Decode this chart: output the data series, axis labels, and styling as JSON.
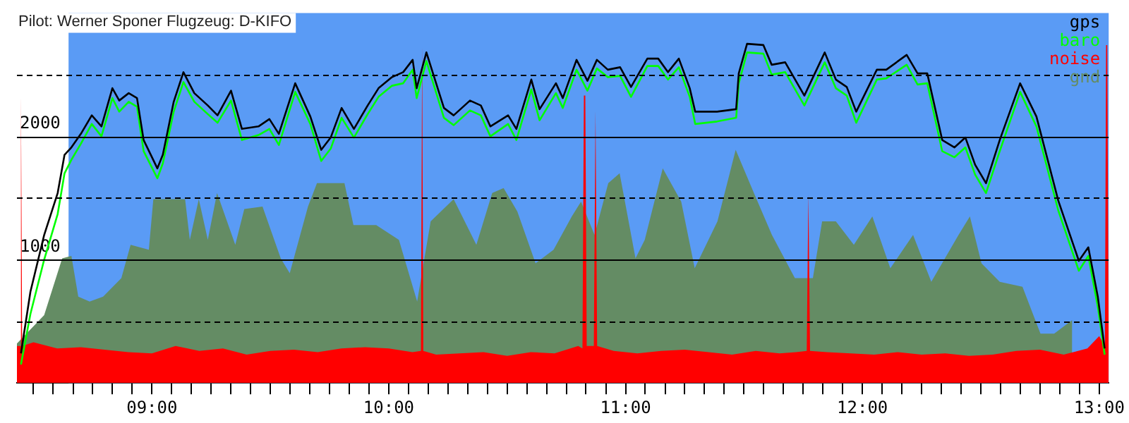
{
  "chart_data": {
    "type": "line",
    "title": "Pilot: Werner Sponer Flugzeug: D-KIFO",
    "legend": "top right",
    "grid": "y",
    "xlim": [
      8.43,
      13.04
    ],
    "ylim": [
      0,
      3000
    ],
    "xticks": [
      {
        "value": 8.5,
        "label": null
      },
      {
        "value": 8.583,
        "label": null
      },
      {
        "value": 8.667,
        "label": null
      },
      {
        "value": 8.75,
        "label": null
      },
      {
        "value": 8.833,
        "label": null
      },
      {
        "value": 8.917,
        "label": null
      },
      {
        "value": 9,
        "label": "09:00"
      },
      {
        "value": 9.083,
        "label": null
      },
      {
        "value": 9.167,
        "label": null
      },
      {
        "value": 9.25,
        "label": null
      },
      {
        "value": 9.333,
        "label": null
      },
      {
        "value": 9.417,
        "label": null
      },
      {
        "value": 9.5,
        "label": null
      },
      {
        "value": 9.583,
        "label": null
      },
      {
        "value": 9.667,
        "label": null
      },
      {
        "value": 9.75,
        "label": null
      },
      {
        "value": 9.833,
        "label": null
      },
      {
        "value": 9.917,
        "label": null
      },
      {
        "value": 10,
        "label": "10:00"
      },
      {
        "value": 10.083,
        "label": null
      },
      {
        "value": 10.167,
        "label": null
      },
      {
        "value": 10.25,
        "label": null
      },
      {
        "value": 10.333,
        "label": null
      },
      {
        "value": 10.417,
        "label": null
      },
      {
        "value": 10.5,
        "label": null
      },
      {
        "value": 10.583,
        "label": null
      },
      {
        "value": 10.667,
        "label": null
      },
      {
        "value": 10.75,
        "label": null
      },
      {
        "value": 10.833,
        "label": null
      },
      {
        "value": 10.917,
        "label": null
      },
      {
        "value": 11,
        "label": "11:00"
      },
      {
        "value": 11.083,
        "label": null
      },
      {
        "value": 11.167,
        "label": null
      },
      {
        "value": 11.25,
        "label": null
      },
      {
        "value": 11.333,
        "label": null
      },
      {
        "value": 11.417,
        "label": null
      },
      {
        "value": 11.5,
        "label": null
      },
      {
        "value": 11.583,
        "label": null
      },
      {
        "value": 11.667,
        "label": null
      },
      {
        "value": 11.75,
        "label": null
      },
      {
        "value": 11.833,
        "label": null
      },
      {
        "value": 11.917,
        "label": null
      },
      {
        "value": 12,
        "label": "12:00"
      },
      {
        "value": 12.083,
        "label": null
      },
      {
        "value": 12.167,
        "label": null
      },
      {
        "value": 12.25,
        "label": null
      },
      {
        "value": 12.333,
        "label": null
      },
      {
        "value": 12.417,
        "label": null
      },
      {
        "value": 12.5,
        "label": null
      },
      {
        "value": 12.583,
        "label": null
      },
      {
        "value": 12.667,
        "label": null
      },
      {
        "value": 12.75,
        "label": null
      },
      {
        "value": 12.833,
        "label": null
      },
      {
        "value": 12.917,
        "label": null
      },
      {
        "value": 13,
        "label": "13:00"
      }
    ],
    "yticks": [
      {
        "value": 500,
        "label": null
      },
      1000,
      {
        "value": 1500,
        "label": null
      },
      2000,
      {
        "value": 2500,
        "label": null
      }
    ],
    "bands": [
      {
        "axis": "x",
        "from": 8.648,
        "to": 13.04,
        "color": "#5a9bf5"
      }
    ],
    "series": [
      {
        "name": "gnd",
        "type": "area",
        "color": "#648c64",
        "x": [
          8.43,
          8.545,
          8.621,
          8.66,
          8.689,
          8.737,
          8.794,
          8.871,
          8.91,
          8.987,
          9.006,
          9.14,
          9.16,
          9.198,
          9.236,
          9.275,
          9.352,
          9.39,
          9.467,
          9.544,
          9.582,
          9.659,
          9.697,
          9.813,
          9.851,
          9.947,
          10.043,
          10.12,
          10.177,
          10.274,
          10.37,
          10.437,
          10.485,
          10.543,
          10.62,
          10.696,
          10.773,
          10.812,
          10.869,
          10.927,
          10.975,
          11.042,
          11.081,
          11.157,
          11.235,
          11.292,
          11.388,
          11.465,
          11.542,
          11.618,
          11.715,
          11.791,
          11.83,
          11.888,
          11.964,
          12.042,
          12.118,
          12.214,
          12.291,
          12.406,
          12.454,
          12.503,
          12.58,
          12.676,
          12.752,
          12.81,
          12.886
        ],
        "values": [
          320,
          550,
          1010,
          1030,
          700,
          660,
          700,
          850,
          1120,
          1080,
          1490,
          1490,
          1160,
          1490,
          1160,
          1540,
          1120,
          1410,
          1430,
          1010,
          890,
          1430,
          1620,
          1620,
          1280,
          1280,
          1160,
          660,
          1310,
          1490,
          1120,
          1540,
          1580,
          1390,
          970,
          1080,
          1350,
          1470,
          1200,
          1620,
          1700,
          1010,
          1160,
          1740,
          1470,
          930,
          1310,
          1890,
          1540,
          1200,
          850,
          850,
          1310,
          1310,
          1120,
          1350,
          930,
          1200,
          820,
          1200,
          1350,
          970,
          820,
          780,
          400,
          400,
          510
        ]
      },
      {
        "name": "noise",
        "type": "area",
        "color": "#ff0000",
        "x": [
          8.43,
          8.442,
          8.447,
          8.452,
          8.5,
          8.6,
          8.7,
          8.8,
          8.9,
          9.0,
          9.1,
          9.2,
          9.3,
          9.4,
          9.5,
          9.6,
          9.7,
          9.8,
          9.9,
          10.0,
          10.1,
          10.136,
          10.141,
          10.146,
          10.2,
          10.3,
          10.4,
          10.5,
          10.6,
          10.7,
          10.8,
          10.818,
          10.824,
          10.83,
          10.836,
          10.866,
          10.873,
          10.88,
          10.95,
          11.05,
          11.15,
          11.25,
          11.35,
          11.45,
          11.55,
          11.65,
          11.72,
          11.765,
          11.772,
          11.779,
          11.85,
          11.95,
          12.05,
          12.15,
          12.25,
          12.35,
          12.45,
          12.55,
          12.65,
          12.75,
          12.85,
          12.95,
          13.0,
          13.024,
          13.029,
          13.034,
          13.04
        ],
        "values": [
          300,
          300,
          2340,
          300,
          330,
          280,
          290,
          270,
          250,
          240,
          300,
          260,
          280,
          230,
          260,
          270,
          250,
          280,
          290,
          280,
          250,
          260,
          2740,
          260,
          230,
          240,
          250,
          220,
          250,
          240,
          300,
          280,
          2330,
          2330,
          300,
          300,
          2210,
          300,
          260,
          240,
          260,
          270,
          250,
          230,
          260,
          240,
          250,
          260,
          1530,
          260,
          250,
          240,
          230,
          250,
          230,
          240,
          220,
          230,
          260,
          270,
          230,
          280,
          380,
          300,
          2740,
          2740,
          300
        ]
      },
      {
        "name": "baro",
        "type": "line",
        "color": "#00ff00",
        "x": [
          8.447,
          8.487,
          8.545,
          8.602,
          8.631,
          8.66,
          8.7,
          8.746,
          8.787,
          8.833,
          8.862,
          8.902,
          8.937,
          8.965,
          9.023,
          9.046,
          9.092,
          9.133,
          9.179,
          9.236,
          9.277,
          9.334,
          9.38,
          9.45,
          9.496,
          9.536,
          9.605,
          9.669,
          9.715,
          9.755,
          9.801,
          9.853,
          9.911,
          9.957,
          10.014,
          10.061,
          10.101,
          10.118,
          10.159,
          10.233,
          10.274,
          10.343,
          10.389,
          10.429,
          10.504,
          10.539,
          10.602,
          10.637,
          10.706,
          10.735,
          10.793,
          10.839,
          10.879,
          10.925,
          10.977,
          11.023,
          11.092,
          11.138,
          11.179,
          11.225,
          11.271,
          11.294,
          11.386,
          11.467,
          11.478,
          11.513,
          11.582,
          11.617,
          11.674,
          11.755,
          11.841,
          11.888,
          11.934,
          11.974,
          12.061,
          12.101,
          12.187,
          12.233,
          12.274,
          12.337,
          12.389,
          12.435,
          12.476,
          12.522,
          12.58,
          12.666,
          12.735,
          12.827,
          12.914,
          12.954,
          12.994,
          13.023
        ],
        "values": [
          150,
          560,
          1000,
          1370,
          1700,
          1810,
          1940,
          2100,
          2000,
          2310,
          2200,
          2280,
          2240,
          1880,
          1660,
          1780,
          2200,
          2440,
          2280,
          2180,
          2110,
          2290,
          1970,
          2010,
          2060,
          1930,
          2360,
          2100,
          1800,
          1900,
          2150,
          1990,
          2180,
          2320,
          2410,
          2430,
          2540,
          2310,
          2610,
          2150,
          2090,
          2210,
          2170,
          2000,
          2100,
          1970,
          2380,
          2130,
          2350,
          2230,
          2540,
          2370,
          2550,
          2480,
          2490,
          2320,
          2570,
          2570,
          2460,
          2560,
          2320,
          2100,
          2120,
          2150,
          2430,
          2680,
          2670,
          2500,
          2520,
          2250,
          2600,
          2390,
          2330,
          2110,
          2460,
          2470,
          2580,
          2420,
          2430,
          1880,
          1830,
          1910,
          1690,
          1540,
          1880,
          2360,
          2080,
          1400,
          910,
          1030,
          620,
          230
        ]
      },
      {
        "name": "gps",
        "type": "line",
        "color": "#000000",
        "x": [
          8.447,
          8.487,
          8.545,
          8.602,
          8.631,
          8.66,
          8.7,
          8.746,
          8.787,
          8.833,
          8.862,
          8.902,
          8.937,
          8.965,
          9.023,
          9.046,
          9.092,
          9.133,
          9.179,
          9.236,
          9.277,
          9.334,
          9.38,
          9.45,
          9.496,
          9.536,
          9.605,
          9.669,
          9.715,
          9.755,
          9.801,
          9.853,
          9.911,
          9.957,
          10.014,
          10.061,
          10.101,
          10.118,
          10.159,
          10.233,
          10.274,
          10.343,
          10.389,
          10.429,
          10.504,
          10.539,
          10.602,
          10.637,
          10.706,
          10.735,
          10.793,
          10.839,
          10.879,
          10.925,
          10.977,
          11.023,
          11.092,
          11.138,
          11.179,
          11.225,
          11.271,
          11.294,
          11.386,
          11.467,
          11.478,
          11.513,
          11.582,
          11.617,
          11.674,
          11.755,
          11.841,
          11.888,
          11.934,
          11.974,
          12.061,
          12.101,
          12.187,
          12.233,
          12.274,
          12.337,
          12.389,
          12.435,
          12.476,
          12.522,
          12.58,
          12.666,
          12.735,
          12.827,
          12.914,
          12.954,
          12.994,
          13.023
        ],
        "values": [
          240,
          740,
          1200,
          1540,
          1850,
          1910,
          2020,
          2170,
          2080,
          2390,
          2290,
          2350,
          2310,
          1970,
          1740,
          1850,
          2280,
          2520,
          2350,
          2250,
          2170,
          2370,
          2060,
          2080,
          2140,
          2020,
          2430,
          2160,
          1890,
          1990,
          2230,
          2060,
          2250,
          2390,
          2480,
          2520,
          2620,
          2390,
          2680,
          2230,
          2170,
          2290,
          2250,
          2080,
          2170,
          2060,
          2460,
          2220,
          2430,
          2310,
          2620,
          2450,
          2620,
          2540,
          2560,
          2400,
          2630,
          2630,
          2520,
          2630,
          2390,
          2200,
          2200,
          2220,
          2510,
          2750,
          2740,
          2580,
          2600,
          2330,
          2680,
          2460,
          2400,
          2200,
          2540,
          2540,
          2660,
          2510,
          2510,
          1970,
          1910,
          1990,
          1770,
          1620,
          1970,
          2430,
          2160,
          1480,
          990,
          1100,
          700,
          280
        ]
      }
    ]
  }
}
